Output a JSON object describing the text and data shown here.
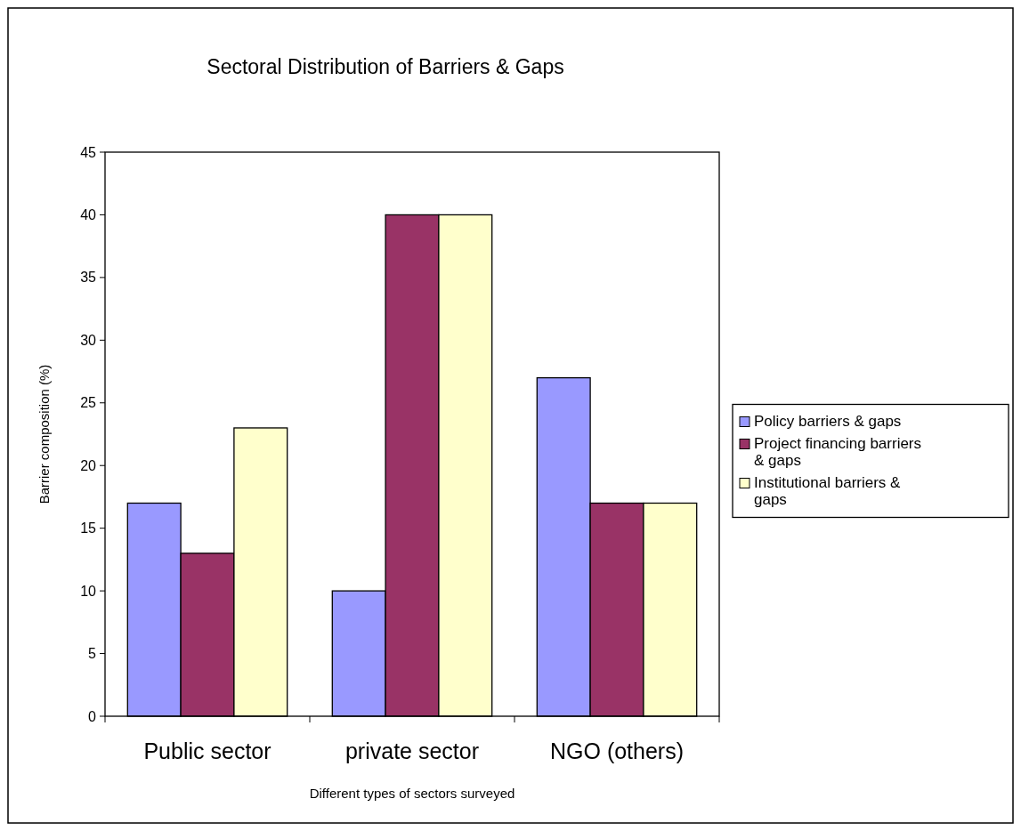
{
  "chart_data": {
    "type": "bar",
    "title": "Sectoral Distribution of Barriers & Gaps",
    "xlabel": "Different types of sectors surveyed",
    "ylabel": "Barrier composition (%)",
    "categories": [
      "Public sector",
      "private sector",
      "NGO (others)"
    ],
    "series": [
      {
        "name": "Policy barriers & gaps",
        "color": "#9999ff",
        "values": [
          17,
          10,
          27
        ]
      },
      {
        "name": "Project financing barriers & gaps",
        "color": "#993366",
        "values": [
          13,
          40,
          17
        ]
      },
      {
        "name": "Institutional barriers & gaps",
        "color": "#ffffcc",
        "values": [
          23,
          40,
          17
        ]
      }
    ],
    "ylim": [
      0,
      45
    ],
    "yticks": [
      0,
      5,
      10,
      15,
      20,
      25,
      30,
      35,
      40,
      45
    ],
    "grid": false,
    "legend": "right"
  }
}
